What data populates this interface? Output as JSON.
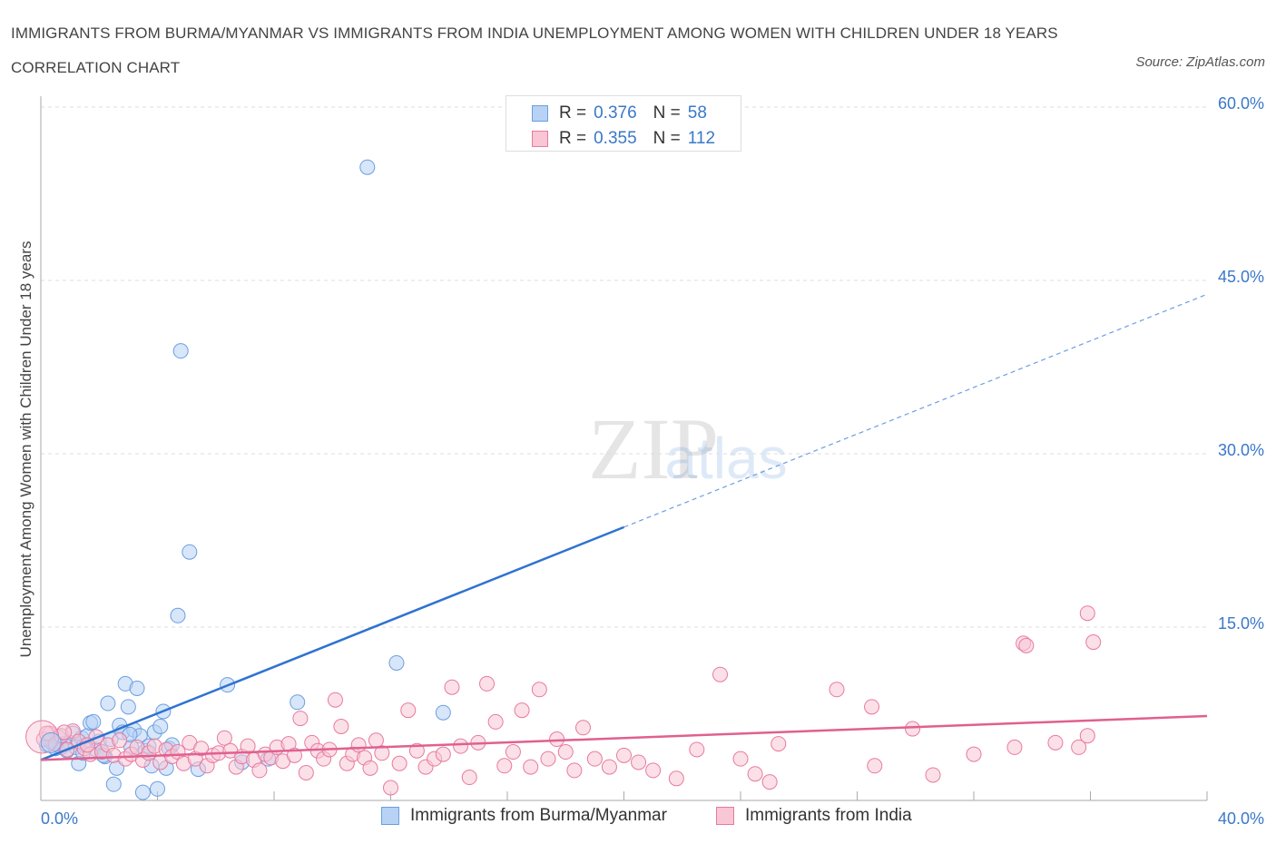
{
  "title": "IMMIGRANTS FROM BURMA/MYANMAR VS IMMIGRANTS FROM INDIA UNEMPLOYMENT AMONG WOMEN WITH CHILDREN UNDER 18 YEARS CORRELATION CHART",
  "source": "Source: ZipAtlas.com",
  "watermark": {
    "zip": "ZIP",
    "atlas": "atlas"
  },
  "legend": {
    "burma": {
      "r_label": "R =",
      "r_value": "0.376",
      "n_label": "N =",
      "n_value": "58"
    },
    "india": {
      "r_label": "R =",
      "r_value": "0.355",
      "n_label": "N =",
      "n_value": "112"
    }
  },
  "chart_data": {
    "type": "scatter",
    "title": "IMMIGRANTS FROM BURMA/MYANMAR VS IMMIGRANTS FROM INDIA UNEMPLOYMENT AMONG WOMEN WITH CHILDREN UNDER 18 YEARS CORRELATION CHART",
    "xlabel": "",
    "ylabel": "Unemployment Among Women with Children Under 18 years",
    "xlim": [
      0,
      40
    ],
    "ylim": [
      0,
      60
    ],
    "x_tick_labels": [
      "0.0%",
      "40.0%"
    ],
    "y_ticks": [
      15,
      30,
      45,
      60
    ],
    "y_tick_labels": [
      "15.0%",
      "30.0%",
      "45.0%",
      "60.0%"
    ],
    "grid": true,
    "legend_position": "top-center",
    "series": [
      {
        "name": "Immigrants from Burma/Myanmar",
        "color": "#6a9fe0",
        "fill": "#b8d2f5",
        "R": 0.376,
        "N": 58,
        "trend": {
          "x0": 0,
          "y0": 3.5,
          "x1": 40,
          "y1": 43.8,
          "solid_until_x": 20
        },
        "points": [
          [
            0.2,
            4.8
          ],
          [
            0.3,
            5.2
          ],
          [
            0.5,
            4.5
          ],
          [
            0.6,
            5.5
          ],
          [
            0.8,
            4.9
          ],
          [
            0.9,
            4.3
          ],
          [
            1.0,
            5.0
          ],
          [
            1.1,
            5.8
          ],
          [
            1.2,
            4.6
          ],
          [
            1.3,
            3.2
          ],
          [
            1.4,
            5.4
          ],
          [
            1.5,
            4.8
          ],
          [
            1.6,
            5.6
          ],
          [
            1.7,
            6.7
          ],
          [
            1.8,
            6.8
          ],
          [
            1.9,
            4.4
          ],
          [
            2.0,
            5.1
          ],
          [
            2.1,
            4.2
          ],
          [
            2.2,
            3.8
          ],
          [
            2.3,
            8.4
          ],
          [
            2.4,
            5.3
          ],
          [
            2.5,
            1.4
          ],
          [
            2.6,
            2.8
          ],
          [
            2.7,
            6.5
          ],
          [
            2.8,
            5.9
          ],
          [
            2.9,
            10.1
          ],
          [
            3.0,
            8.1
          ],
          [
            3.1,
            4.6
          ],
          [
            3.2,
            6.1
          ],
          [
            3.3,
            9.7
          ],
          [
            3.4,
            5.6
          ],
          [
            3.5,
            0.7
          ],
          [
            3.6,
            4.3
          ],
          [
            3.7,
            4.7
          ],
          [
            3.8,
            3.0
          ],
          [
            3.9,
            5.9
          ],
          [
            4.0,
            1.0
          ],
          [
            4.1,
            6.4
          ],
          [
            4.2,
            7.7
          ],
          [
            4.3,
            2.8
          ],
          [
            4.4,
            4.5
          ],
          [
            4.5,
            4.8
          ],
          [
            4.8,
            38.9
          ],
          [
            4.7,
            16.0
          ],
          [
            5.1,
            21.5
          ],
          [
            5.4,
            2.7
          ],
          [
            6.4,
            10.0
          ],
          [
            6.9,
            3.3
          ],
          [
            7.8,
            3.6
          ],
          [
            8.8,
            8.5
          ],
          [
            11.2,
            54.8
          ],
          [
            12.2,
            11.9
          ],
          [
            13.8,
            7.6
          ],
          [
            0.4,
            5.0
          ],
          [
            0.7,
            4.6
          ],
          [
            1.45,
            4.1
          ],
          [
            2.15,
            3.9
          ],
          [
            3.05,
            5.7
          ]
        ]
      },
      {
        "name": "Immigrants from India",
        "color": "#e87a9f",
        "fill": "#f8c6d5",
        "R": 0.355,
        "N": 112,
        "trend": {
          "x0": 0,
          "y0": 3.5,
          "x1": 40,
          "y1": 7.3
        },
        "points": [
          [
            0.1,
            5.3
          ],
          [
            0.3,
            5.8
          ],
          [
            0.5,
            4.9
          ],
          [
            0.7,
            5.6
          ],
          [
            0.9,
            4.4
          ],
          [
            1.1,
            6.0
          ],
          [
            1.3,
            5.1
          ],
          [
            1.5,
            4.5
          ],
          [
            1.7,
            4.0
          ],
          [
            1.9,
            5.5
          ],
          [
            2.1,
            4.2
          ],
          [
            2.3,
            4.8
          ],
          [
            2.5,
            3.9
          ],
          [
            2.7,
            5.2
          ],
          [
            2.9,
            3.6
          ],
          [
            3.1,
            4.0
          ],
          [
            3.3,
            4.6
          ],
          [
            3.5,
            3.5
          ],
          [
            3.7,
            4.1
          ],
          [
            3.9,
            4.7
          ],
          [
            4.1,
            3.3
          ],
          [
            4.3,
            4.4
          ],
          [
            4.5,
            3.8
          ],
          [
            4.7,
            4.2
          ],
          [
            4.9,
            3.2
          ],
          [
            5.1,
            5.0
          ],
          [
            5.3,
            3.6
          ],
          [
            5.5,
            4.5
          ],
          [
            5.7,
            3.0
          ],
          [
            5.9,
            3.9
          ],
          [
            6.1,
            4.1
          ],
          [
            6.3,
            5.4
          ],
          [
            6.5,
            4.3
          ],
          [
            6.7,
            2.9
          ],
          [
            6.9,
            3.8
          ],
          [
            7.1,
            4.7
          ],
          [
            7.3,
            3.5
          ],
          [
            7.5,
            2.6
          ],
          [
            7.7,
            4.0
          ],
          [
            7.9,
            3.7
          ],
          [
            8.1,
            4.6
          ],
          [
            8.3,
            3.4
          ],
          [
            8.5,
            4.9
          ],
          [
            8.7,
            3.9
          ],
          [
            8.9,
            7.1
          ],
          [
            9.1,
            2.4
          ],
          [
            9.3,
            5.0
          ],
          [
            9.5,
            4.3
          ],
          [
            9.7,
            3.6
          ],
          [
            9.9,
            4.4
          ],
          [
            10.1,
            8.7
          ],
          [
            10.3,
            6.4
          ],
          [
            10.5,
            3.2
          ],
          [
            10.7,
            4.0
          ],
          [
            10.9,
            4.8
          ],
          [
            11.1,
            3.7
          ],
          [
            11.3,
            2.8
          ],
          [
            11.5,
            5.2
          ],
          [
            11.7,
            4.1
          ],
          [
            12.0,
            1.1
          ],
          [
            12.3,
            3.2
          ],
          [
            12.6,
            7.8
          ],
          [
            12.9,
            4.3
          ],
          [
            13.2,
            2.9
          ],
          [
            13.5,
            3.6
          ],
          [
            13.8,
            4.0
          ],
          [
            14.1,
            9.8
          ],
          [
            14.4,
            4.7
          ],
          [
            14.7,
            2.0
          ],
          [
            15.0,
            5.0
          ],
          [
            15.3,
            10.1
          ],
          [
            15.6,
            6.8
          ],
          [
            15.9,
            3.0
          ],
          [
            16.2,
            4.2
          ],
          [
            16.5,
            7.8
          ],
          [
            16.8,
            2.9
          ],
          [
            17.1,
            9.6
          ],
          [
            17.4,
            3.6
          ],
          [
            17.7,
            5.3
          ],
          [
            18.0,
            4.2
          ],
          [
            18.3,
            2.6
          ],
          [
            18.6,
            6.3
          ],
          [
            19.0,
            3.6
          ],
          [
            19.5,
            2.9
          ],
          [
            20.0,
            3.9
          ],
          [
            20.5,
            3.3
          ],
          [
            21.0,
            2.6
          ],
          [
            21.8,
            1.9
          ],
          [
            22.5,
            4.4
          ],
          [
            23.3,
            10.9
          ],
          [
            24.0,
            3.6
          ],
          [
            24.5,
            2.3
          ],
          [
            25.0,
            1.6
          ],
          [
            25.3,
            4.9
          ],
          [
            27.3,
            9.6
          ],
          [
            28.5,
            8.1
          ],
          [
            28.6,
            3.0
          ],
          [
            29.9,
            6.2
          ],
          [
            30.6,
            2.2
          ],
          [
            32.0,
            4.0
          ],
          [
            33.4,
            4.6
          ],
          [
            33.7,
            13.6
          ],
          [
            33.8,
            13.4
          ],
          [
            34.8,
            5.0
          ],
          [
            35.6,
            4.6
          ],
          [
            35.9,
            16.2
          ],
          [
            36.1,
            13.7
          ],
          [
            35.9,
            5.6
          ],
          [
            0.2,
            5.8
          ],
          [
            0.8,
            5.9
          ],
          [
            1.6,
            4.8
          ]
        ]
      }
    ]
  }
}
